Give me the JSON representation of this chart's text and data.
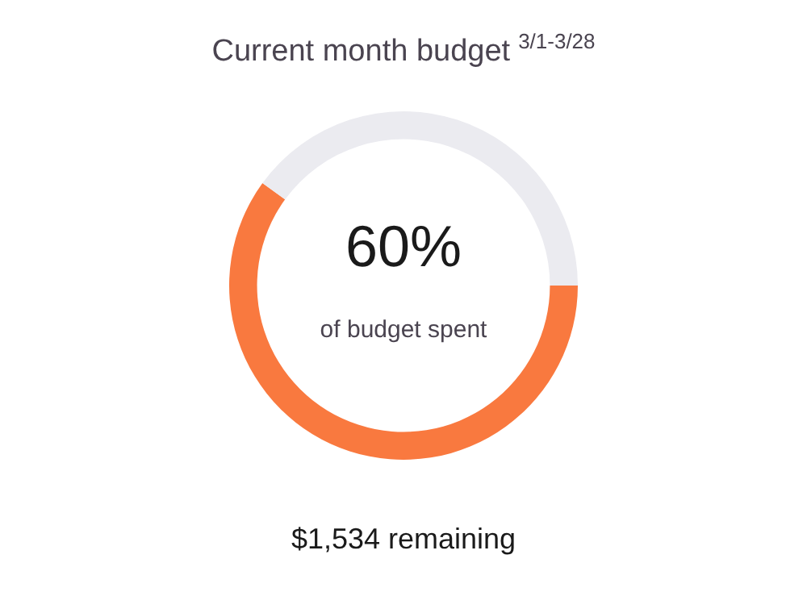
{
  "chart_data": {
    "type": "donut",
    "title": "Current month budget",
    "subtitle": "3/1-3/28",
    "categories": [
      null,
      null
    ],
    "values": [
      60,
      40
    ],
    "colors": [
      "#f9793f",
      "#ebebf0"
    ],
    "annotations": [
      "60%",
      "of budget spent",
      "$1,534 remaining"
    ],
    "legend": false
  }
}
